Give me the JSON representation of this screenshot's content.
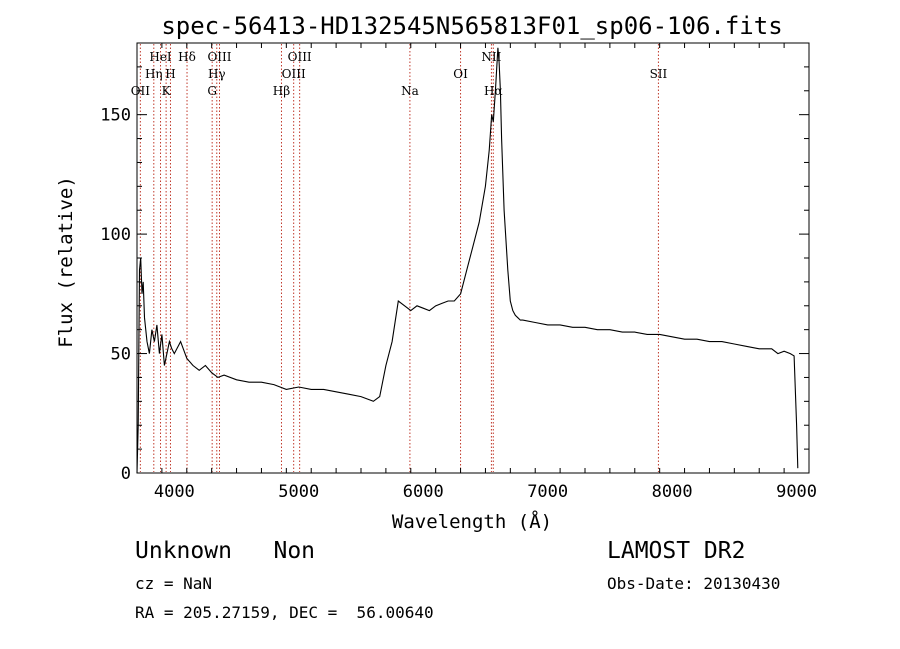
{
  "chart_data": {
    "type": "line",
    "title": "spec-56413-HD132545N565813F01_sp06-106.fits",
    "xlabel": "Wavelength (Å)",
    "ylabel": "Flux (relative)",
    "xlim": [
      3700,
      9100
    ],
    "ylim": [
      0,
      180
    ],
    "xticks": [
      4000,
      5000,
      6000,
      7000,
      8000,
      9000
    ],
    "yticks": [
      0,
      50,
      100,
      150
    ],
    "grid": false,
    "series": [
      {
        "x": [
          3700,
          3710,
          3720,
          3730,
          3740,
          3750,
          3760,
          3780,
          3800,
          3820,
          3840,
          3860,
          3880,
          3900,
          3920,
          3940,
          3960,
          3980,
          4000,
          4050,
          4100,
          4150,
          4200,
          4250,
          4300,
          4350,
          4400,
          4500,
          4600,
          4700,
          4800,
          4900,
          5000,
          5100,
          5200,
          5300,
          5400,
          5500,
          5600,
          5650,
          5700,
          5750,
          5800,
          5850,
          5900,
          5950,
          6000,
          6050,
          6100,
          6150,
          6200,
          6250,
          6300,
          6350,
          6400,
          6450,
          6500,
          6530,
          6550,
          6563,
          6580,
          6600,
          6610,
          6620,
          6630,
          6650,
          6680,
          6700,
          6720,
          6740,
          6760,
          6780,
          6800,
          6900,
          7000,
          7100,
          7200,
          7300,
          7400,
          7500,
          7600,
          7700,
          7800,
          7900,
          8000,
          8100,
          8200,
          8300,
          8400,
          8500,
          8600,
          8700,
          8800,
          8850,
          8900,
          8950,
          8980,
          9000,
          9010
        ],
        "y": [
          0,
          20,
          85,
          90,
          75,
          80,
          65,
          55,
          50,
          60,
          55,
          62,
          50,
          58,
          45,
          50,
          55,
          52,
          50,
          55,
          48,
          45,
          43,
          45,
          42,
          40,
          41,
          39,
          38,
          38,
          37,
          35,
          36,
          35,
          35,
          34,
          33,
          32,
          30,
          32,
          45,
          55,
          72,
          70,
          68,
          70,
          69,
          68,
          70,
          71,
          72,
          72,
          75,
          85,
          95,
          105,
          120,
          135,
          150,
          147,
          160,
          178,
          172,
          160,
          140,
          110,
          85,
          72,
          68,
          66,
          65,
          64,
          64,
          63,
          62,
          62,
          61,
          61,
          60,
          60,
          59,
          59,
          58,
          58,
          57,
          56,
          56,
          55,
          55,
          54,
          53,
          52,
          52,
          50,
          51,
          50,
          49,
          20,
          2
        ]
      }
    ],
    "spectral_lines": [
      {
        "label": "OII",
        "wavelength": 3727,
        "row": 3
      },
      {
        "label": "Hη",
        "wavelength": 3835,
        "row": 2
      },
      {
        "label": "HeI",
        "wavelength": 3889,
        "row": 1
      },
      {
        "label": "K",
        "wavelength": 3934,
        "row": 3
      },
      {
        "label": "H",
        "wavelength": 3969,
        "row": 2
      },
      {
        "label": "Hδ",
        "wavelength": 4102,
        "row": 1
      },
      {
        "label": "G",
        "wavelength": 4304,
        "row": 3
      },
      {
        "label": "Hγ",
        "wavelength": 4341,
        "row": 2
      },
      {
        "label": "OIII",
        "wavelength": 4363,
        "row": 1
      },
      {
        "label": "Hβ",
        "wavelength": 4861,
        "row": 3
      },
      {
        "label": "OIII",
        "wavelength": 4959,
        "row": 2
      },
      {
        "label": "OIII",
        "wavelength": 5007,
        "row": 1
      },
      {
        "label": "Na",
        "wavelength": 5893,
        "row": 3
      },
      {
        "label": "OI",
        "wavelength": 6300,
        "row": 2
      },
      {
        "label": "NII",
        "wavelength": 6548,
        "row": 1
      },
      {
        "label": "Hα",
        "wavelength": 6563,
        "row": 3
      },
      {
        "label": "SII",
        "wavelength": 7890,
        "row": 2
      }
    ],
    "line_marker_color": "#c0392b"
  },
  "info": {
    "classification": "Unknown   Non",
    "survey": "LAMOST DR2",
    "redshift": "cz = NaN",
    "obs_date": "Obs-Date: 20130430",
    "coordinates": "RA = 205.27159, DEC =  56.00640"
  }
}
